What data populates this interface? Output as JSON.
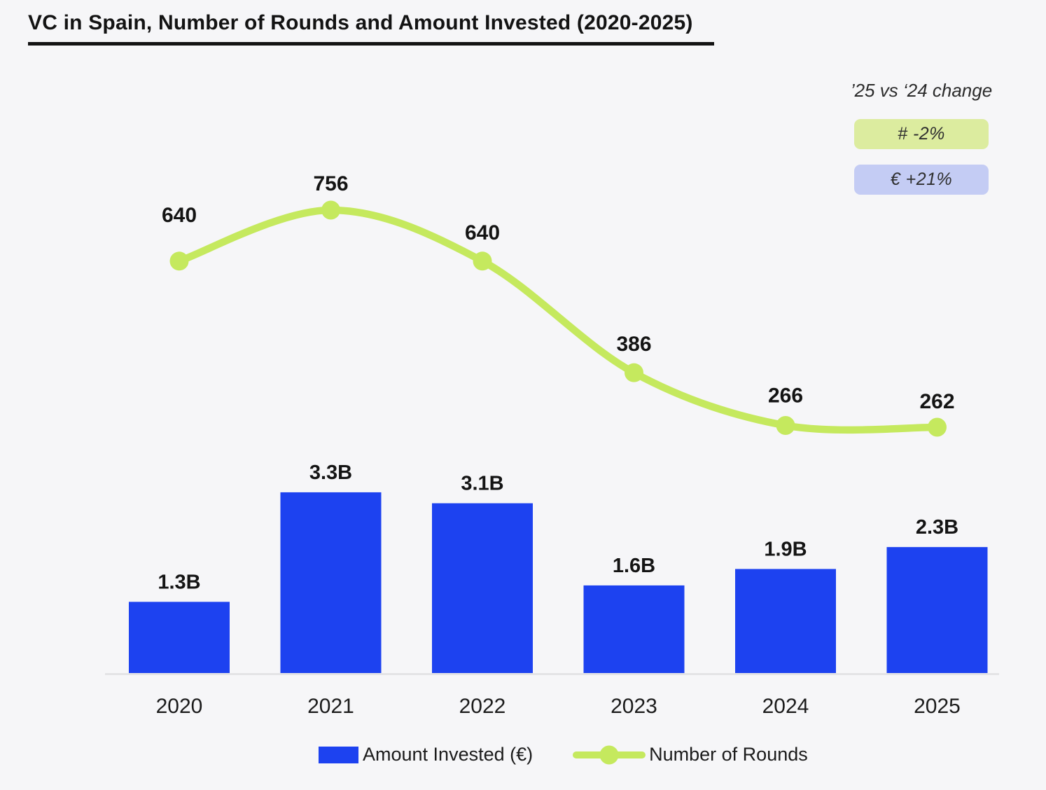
{
  "title": "VC in Spain, Number of Rounds and Amount Invested (2020-2025)",
  "annotation": {
    "heading": "’25 vs ‘24 change",
    "badges": [
      {
        "label": "#  -2%",
        "bg": "#dcec9f",
        "metric": "number-of-rounds"
      },
      {
        "label": "€  +21%",
        "bg": "#c4ccf4",
        "metric": "amount-invested"
      }
    ]
  },
  "legend": [
    {
      "label": "Amount Invested (€)",
      "type": "bar",
      "color": "#1d42f0"
    },
    {
      "label": "Number of Rounds",
      "type": "line",
      "color": "#c5e95e"
    }
  ],
  "colors": {
    "background": "#f6f6f8",
    "bar": "#1d42f0",
    "line": "#c5e95e",
    "text": "#141414",
    "axis": "#e4e4e6",
    "badge_rounds_bg": "#dcec9f",
    "badge_amount_bg": "#c4ccf4"
  },
  "chart_data": {
    "type": "combo",
    "title": "VC in Spain, Number of Rounds and Amount Invested (2020-2025)",
    "categories": [
      "2020",
      "2021",
      "2022",
      "2023",
      "2024",
      "2025"
    ],
    "series": [
      {
        "name": "Amount Invested (€)",
        "type": "bar",
        "unit": "B€",
        "values": [
          1.3,
          3.3,
          3.1,
          1.6,
          1.9,
          2.3
        ],
        "labels": [
          "1.3B",
          "3.3B",
          "3.1B",
          "1.6B",
          "1.9B",
          "2.3B"
        ],
        "color": "#1d42f0"
      },
      {
        "name": "Number of Rounds",
        "type": "line",
        "values": [
          640,
          756,
          640,
          386,
          266,
          262
        ],
        "labels": [
          "640",
          "756",
          "640",
          "386",
          "266",
          "262"
        ],
        "color": "#c5e95e"
      }
    ],
    "grid": false,
    "y_axis_visible": false,
    "legend_position": "bottom"
  }
}
